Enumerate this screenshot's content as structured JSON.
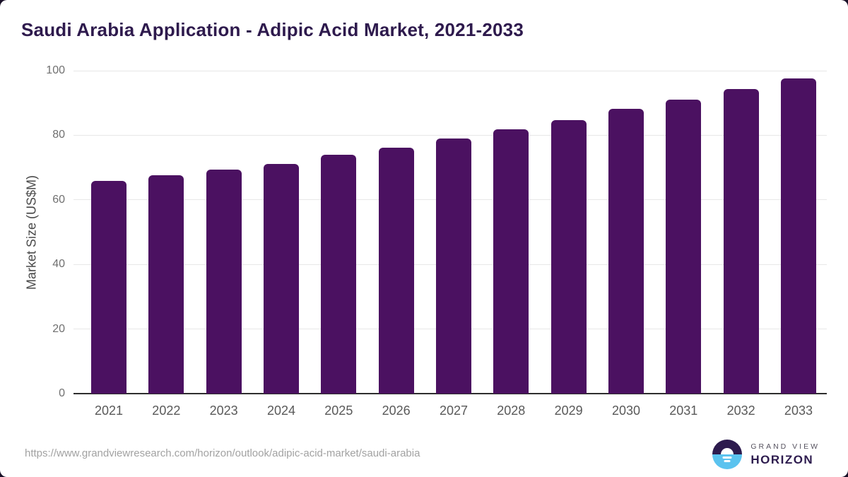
{
  "title": "Saudi Arabia Application - Adipic Acid Market, 2021-2033",
  "chart_data": {
    "type": "bar",
    "title": "Saudi Arabia Application - Adipic Acid Market, 2021-2033",
    "categories": [
      "2021",
      "2022",
      "2023",
      "2024",
      "2025",
      "2026",
      "2027",
      "2028",
      "2029",
      "2030",
      "2031",
      "2032",
      "2033"
    ],
    "values": [
      65.9,
      67.7,
      69.4,
      71.2,
      74.0,
      76.2,
      78.9,
      81.9,
      84.6,
      88.1,
      91.1,
      94.4,
      97.7
    ],
    "xlabel": "",
    "ylabel": "Market Size (US$M)",
    "ylim": [
      0,
      100
    ],
    "yticks": [
      0,
      20,
      40,
      60,
      80,
      100
    ],
    "grid": true,
    "legend_position": "none",
    "bar_color": "#4b1161"
  },
  "colors": {
    "title_text": "#2e1a4d",
    "bar": "#4b1161",
    "gridline": "#e7e7e7",
    "axis_line": "#2e2e2e",
    "tick_text": "#707070",
    "logo_dark": "#2d1b4e",
    "logo_blue": "#5bc3ef"
  },
  "footer": {
    "source_url": "https://www.grandviewresearch.com/horizon/outlook/adipic-acid-market/saudi-arabia",
    "logo": {
      "top": "GRAND VIEW",
      "bottom": "HORIZON"
    }
  }
}
